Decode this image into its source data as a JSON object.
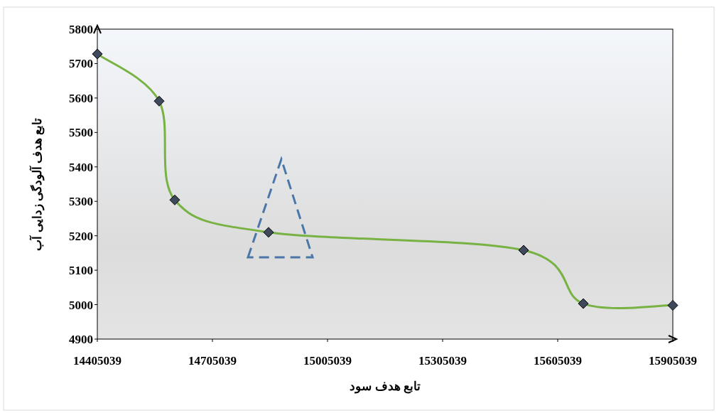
{
  "chart_data": {
    "type": "line",
    "xlabel": "تابع هدف سود",
    "ylabel": "تابع هدف آلودگی زدایی آب",
    "x": [
      14405039,
      14566150,
      14606891,
      14851335,
      15516150,
      15671706,
      15905039
    ],
    "series": [
      {
        "color": "#77b243",
        "values": [
          5728,
          5591,
          5304,
          5210,
          5158,
          5003,
          4998
        ]
      }
    ],
    "xlim": [
      14405039,
      15905039
    ],
    "xticks": [
      14405039,
      14705039,
      15005039,
      15305039,
      15605039,
      15905039
    ],
    "ylim": [
      4900,
      5800
    ],
    "yticks": [
      4900,
      5000,
      5100,
      5200,
      5300,
      5400,
      5500,
      5600,
      5700,
      5800
    ],
    "marker": "diamond",
    "line_style": "solid",
    "grid": false
  }
}
